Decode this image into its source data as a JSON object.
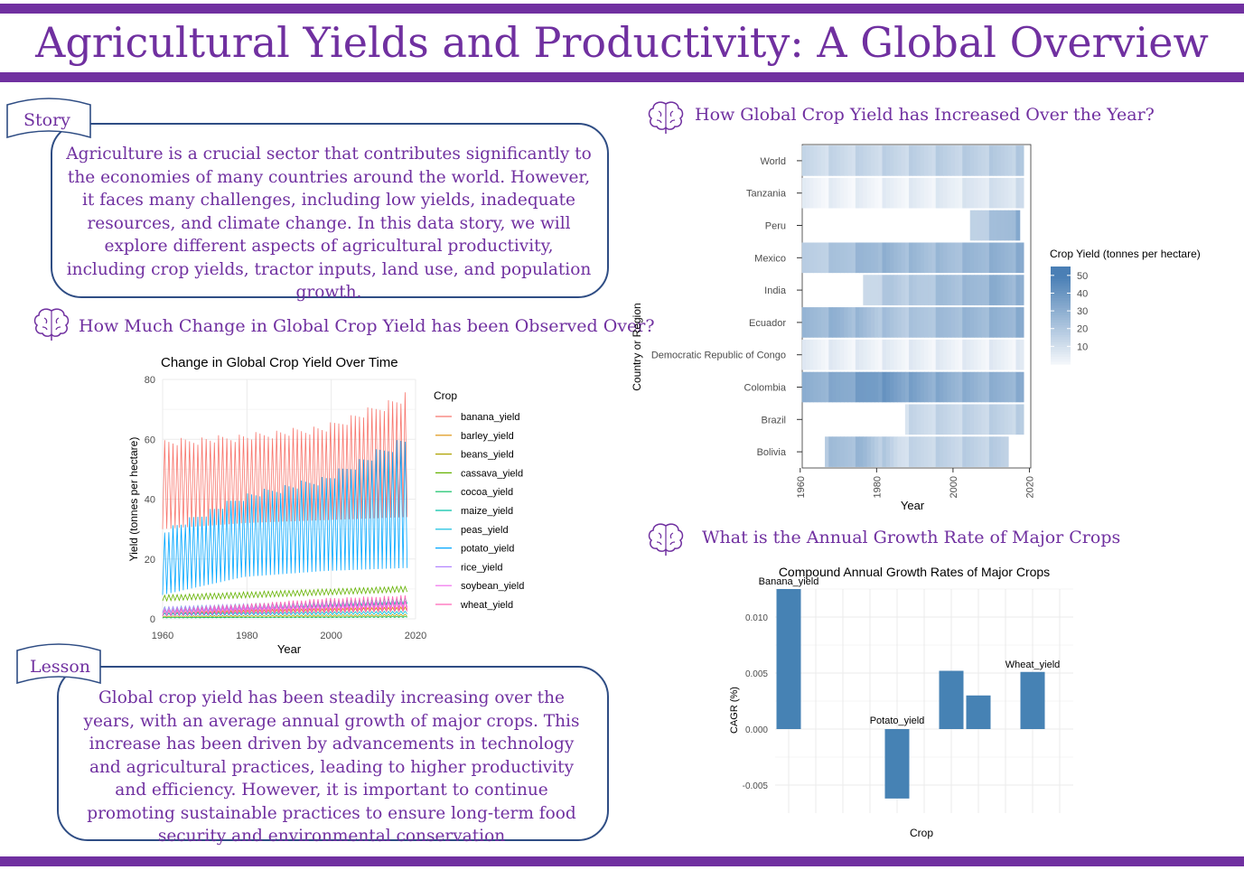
{
  "page": {
    "title": "Agricultural Yields and Productivity: A Global Overview",
    "story_label": "Story",
    "story_text": "Agriculture is a crucial sector that contributes significantly to the economies of many countries around the world. However, it faces many challenges, including low yields, inadequate resources, and climate change. In this data story, we will explore different aspects of agricultural productivity, including crop yields, tractor inputs, land use, and population growth.",
    "lesson_label": "Lesson",
    "lesson_text": "Global crop yield has been steadily increasing over the years, with an average annual growth of major crops. This increase has been driven by advancements in technology and agricultural practices, leading to higher productivity and efficiency. However, it is important to continue promoting sustainable practices to ensure long-term food security and environmental conservation",
    "section1_title": "How Much Change in Global Crop Yield has been Observed Over?",
    "section2_title": "How Global Crop Yield has Increased Over the Year?",
    "section3_title": "What is the Annual Growth Rate of Major Crops",
    "icon": "brain-icon",
    "accent_color": "#7030a0",
    "box_border_color": "#2f4d84"
  },
  "chart_data": [
    {
      "type": "line",
      "title": "Change in Global Crop Yield Over Time",
      "xlabel": "Year",
      "ylabel": "Yield (tonnes per hectare)",
      "xlim": [
        1960,
        2020
      ],
      "ylim": [
        0,
        80
      ],
      "xticks": [
        1960,
        1980,
        2000,
        2020
      ],
      "yticks": [
        0,
        20,
        40,
        60,
        80
      ],
      "legend_title": "Crop",
      "legend_position": "right",
      "grid": true,
      "series": [
        {
          "name": "banana_yield",
          "color": "#f8766d",
          "values_low": [
            30,
            32,
            33,
            34
          ],
          "values_high": [
            60,
            62,
            65,
            76
          ]
        },
        {
          "name": "barley_yield",
          "color": "#db8e00",
          "values_low": [
            1,
            1.5,
            2,
            2.5
          ],
          "values_high": [
            2,
            3,
            3.5,
            4
          ]
        },
        {
          "name": "beans_yield",
          "color": "#aea200",
          "values_low": [
            0.5,
            0.6,
            0.7,
            0.8
          ],
          "values_high": [
            1,
            1.2,
            1.4,
            1.6
          ]
        },
        {
          "name": "cassava_yield",
          "color": "#64b200",
          "values_low": [
            6,
            7,
            8,
            9
          ],
          "values_high": [
            8,
            9,
            10,
            11
          ]
        },
        {
          "name": "cocoa_yield",
          "color": "#00bd5c",
          "values_low": [
            0.3,
            0.4,
            0.4,
            0.5
          ],
          "values_high": [
            0.5,
            0.6,
            0.7,
            0.8
          ]
        },
        {
          "name": "maize_yield",
          "color": "#00c1a7",
          "values_low": [
            2,
            3,
            4,
            5
          ],
          "values_high": [
            4,
            5,
            6,
            7
          ]
        },
        {
          "name": "peas_yield",
          "color": "#00bade",
          "values_low": [
            1,
            1.2,
            1.4,
            1.6
          ],
          "values_high": [
            2,
            2.2,
            2.4,
            2.6
          ]
        },
        {
          "name": "potato_yield",
          "color": "#00a6ff",
          "values_low": [
            8,
            14,
            16,
            17
          ],
          "values_high": [
            30,
            42,
            48,
            62
          ]
        },
        {
          "name": "rice_yield",
          "color": "#b385ff",
          "values_low": [
            2,
            3,
            3.5,
            4
          ],
          "values_high": [
            4,
            5,
            5.5,
            6
          ]
        },
        {
          "name": "soybean_yield",
          "color": "#ef67eb",
          "values_low": [
            1,
            1.5,
            2,
            2.5
          ],
          "values_high": [
            3,
            4,
            5,
            6
          ]
        },
        {
          "name": "wheat_yield",
          "color": "#ff63b6",
          "values_low": [
            1,
            2,
            2.5,
            3
          ],
          "values_high": [
            3,
            5,
            7,
            8
          ]
        }
      ],
      "x": [
        1960,
        1980,
        2000,
        2018
      ]
    },
    {
      "type": "heatmap",
      "xlabel": "Year",
      "ylabel": "Country or Region",
      "xticks": [
        1960,
        1980,
        2000,
        2020
      ],
      "xlim": [
        1961,
        2018
      ],
      "legend_title": "Crop Yield (tonnes per hectare)",
      "legend_ticks": [
        10,
        20,
        30,
        40,
        50
      ],
      "legend_position": "right",
      "color_low": "#f7f9fc",
      "color_high": "#4a7fb5",
      "categories": [
        "World",
        "Tanzania",
        "Peru",
        "Mexico",
        "India",
        "Ecuador",
        "Democratic Republic of Congo",
        "Colombia",
        "Brazil",
        "Bolivia"
      ],
      "rows": [
        {
          "name": "World",
          "start": 1961,
          "end": 2018,
          "values": [
            12,
            13,
            14,
            15,
            16,
            17,
            18
          ]
        },
        {
          "name": "Tanzania",
          "start": 1961,
          "end": 2018,
          "values": [
            3,
            3,
            3,
            4,
            5,
            8,
            10
          ]
        },
        {
          "name": "Peru",
          "start": 2005,
          "end": 2017,
          "values": [
            15,
            22,
            30
          ]
        },
        {
          "name": "Mexico",
          "start": 1961,
          "end": 2018,
          "values": [
            15,
            22,
            28,
            25,
            24,
            28,
            30
          ]
        },
        {
          "name": "India",
          "start": 1977,
          "end": 2018,
          "values": [
            12,
            20,
            18,
            24,
            25,
            30,
            28
          ]
        },
        {
          "name": "Ecuador",
          "start": 1961,
          "end": 2018,
          "values": [
            25,
            28,
            22,
            20,
            25,
            27,
            30
          ]
        },
        {
          "name": "Democratic Republic of Congo",
          "start": 1961,
          "end": 2018,
          "values": [
            4,
            4,
            4,
            4,
            4,
            4,
            4
          ]
        },
        {
          "name": "Colombia",
          "start": 1961,
          "end": 2018,
          "values": [
            28,
            32,
            40,
            34,
            30,
            28,
            30
          ]
        },
        {
          "name": "Brazil",
          "start": 1988,
          "end": 2018,
          "values": [
            12,
            14,
            15,
            16
          ]
        },
        {
          "name": "Bolivia",
          "start": 1967,
          "end": 2014,
          "values": [
            22,
            26,
            12,
            15,
            16,
            17
          ]
        }
      ]
    },
    {
      "type": "bar",
      "title": "Compound Annual Growth Rates of Major Crops",
      "xlabel": "Crop",
      "ylabel": "CAGR (%)",
      "ylim": [
        -0.0075,
        0.0125
      ],
      "yticks": [
        -0.005,
        0.0,
        0.005,
        0.01
      ],
      "ytick_labels": [
        "-0.005",
        "0.000",
        "0.005",
        "0.010"
      ],
      "grid": true,
      "color": "#4682b4",
      "values": [
        0.0125,
        -0.0062,
        0.0052,
        0.003,
        0.0051
      ],
      "slots": [
        0,
        4,
        6,
        7,
        9
      ],
      "slot_count": 11,
      "data_labels": [
        "Banana_yield",
        "Potato_yield",
        "",
        "",
        "Wheat_yield"
      ]
    }
  ]
}
